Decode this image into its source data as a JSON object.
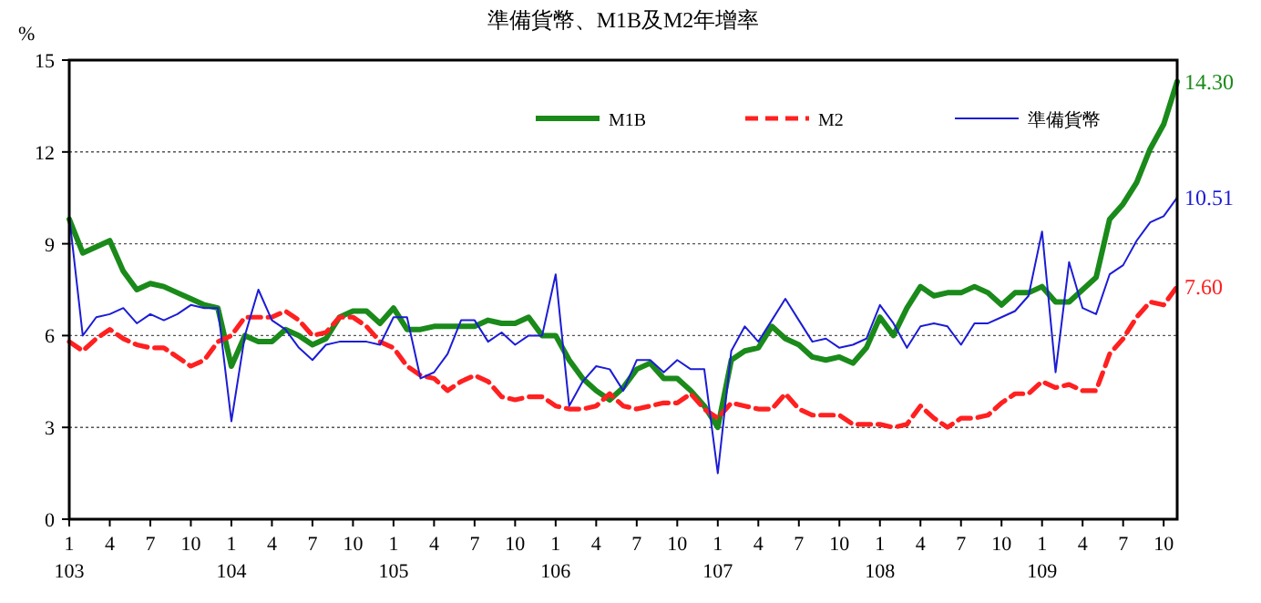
{
  "chart_data": {
    "type": "line",
    "title": "準備貨幣、M1B及M2年增率",
    "ylabel": "%",
    "categories": [
      "1\n103",
      null,
      null,
      "4",
      null,
      null,
      "7",
      null,
      null,
      "10",
      null,
      null,
      "1\n104",
      null,
      null,
      "4",
      null,
      null,
      "7",
      null,
      null,
      "10",
      null,
      null,
      "1\n105",
      null,
      null,
      "4",
      null,
      null,
      "7",
      null,
      null,
      "10",
      null,
      null,
      "1\n106",
      null,
      null,
      "4",
      null,
      null,
      "7",
      null,
      null,
      "10",
      null,
      null,
      "1\n107",
      null,
      null,
      "4",
      null,
      null,
      "7",
      null,
      null,
      "10",
      null,
      null,
      "1\n108",
      null,
      null,
      "4",
      null,
      null,
      "7",
      null,
      null,
      "10",
      null,
      null,
      "1\n109",
      null,
      null,
      "4",
      null,
      null,
      "7",
      null,
      null,
      "10",
      null
    ],
    "series": [
      {
        "name": "M1B",
        "color": "#1a8a1a",
        "line_style": "solid",
        "values": [
          9.8,
          8.7,
          8.9,
          9.1,
          8.1,
          7.5,
          7.7,
          7.6,
          7.4,
          7.2,
          7.0,
          6.9,
          5.0,
          6.0,
          5.8,
          5.8,
          6.2,
          6.0,
          5.7,
          5.9,
          6.6,
          6.8,
          6.8,
          6.4,
          6.9,
          6.2,
          6.2,
          6.3,
          6.3,
          6.3,
          6.3,
          6.5,
          6.4,
          6.4,
          6.6,
          6.0,
          6.0,
          5.2,
          4.6,
          4.2,
          3.9,
          4.3,
          4.9,
          5.1,
          4.6,
          4.6,
          4.2,
          3.7,
          3.0,
          5.2,
          5.5,
          5.6,
          6.3,
          5.9,
          5.7,
          5.3,
          5.2,
          5.3,
          5.1,
          5.6,
          6.6,
          6.0,
          6.9,
          7.6,
          7.3,
          7.4,
          7.4,
          7.6,
          7.4,
          7.0,
          7.4,
          7.4,
          7.6,
          7.1,
          7.1,
          7.5,
          7.9,
          9.8,
          10.3,
          11.0,
          12.1,
          12.9,
          14.3
        ],
        "value_labels": [
          null,
          null,
          null,
          null,
          null,
          null,
          null,
          null,
          null,
          null,
          null,
          null,
          null,
          null,
          null,
          null,
          null,
          null,
          null,
          null,
          null,
          null,
          null,
          null,
          null,
          null,
          null,
          null,
          null,
          null,
          null,
          null,
          null,
          null,
          null,
          null,
          null,
          null,
          null,
          null,
          null,
          null,
          null,
          null,
          null,
          null,
          null,
          null,
          null,
          null,
          null,
          null,
          null,
          null,
          null,
          null,
          null,
          null,
          null,
          null,
          null,
          null,
          null,
          null,
          null,
          null,
          null,
          null,
          null,
          null,
          null,
          null,
          null,
          null,
          null,
          null,
          null,
          null,
          null,
          null,
          null,
          null,
          "14.30"
        ]
      },
      {
        "name": "M2",
        "color": "#ff2020",
        "line_style": "dashed",
        "values": [
          5.8,
          5.5,
          5.9,
          6.2,
          5.9,
          5.7,
          5.6,
          5.6,
          5.3,
          5.0,
          5.2,
          5.8,
          6.0,
          6.6,
          6.6,
          6.6,
          6.8,
          6.5,
          6.0,
          6.1,
          6.6,
          6.6,
          6.3,
          5.8,
          5.6,
          5.0,
          4.7,
          4.6,
          4.2,
          4.5,
          4.7,
          4.5,
          4.0,
          3.9,
          4.0,
          4.0,
          3.7,
          3.6,
          3.6,
          3.7,
          4.1,
          3.7,
          3.6,
          3.7,
          3.8,
          3.8,
          4.1,
          3.6,
          3.3,
          3.8,
          3.7,
          3.6,
          3.6,
          4.1,
          3.6,
          3.4,
          3.4,
          3.4,
          3.1,
          3.1,
          3.1,
          3.0,
          3.1,
          3.7,
          3.3,
          3.0,
          3.3,
          3.3,
          3.4,
          3.8,
          4.1,
          4.1,
          4.5,
          4.3,
          4.4,
          4.2,
          4.2,
          5.4,
          5.9,
          6.6,
          7.1,
          7.0,
          7.6
        ],
        "value_labels": [
          null,
          null,
          null,
          null,
          null,
          null,
          null,
          null,
          null,
          null,
          null,
          null,
          null,
          null,
          null,
          null,
          null,
          null,
          null,
          null,
          null,
          null,
          null,
          null,
          null,
          null,
          null,
          null,
          null,
          null,
          null,
          null,
          null,
          null,
          null,
          null,
          null,
          null,
          null,
          null,
          null,
          null,
          null,
          null,
          null,
          null,
          null,
          null,
          null,
          null,
          null,
          null,
          null,
          null,
          null,
          null,
          null,
          null,
          null,
          null,
          null,
          null,
          null,
          null,
          null,
          null,
          null,
          null,
          null,
          null,
          null,
          null,
          null,
          null,
          null,
          null,
          null,
          null,
          null,
          null,
          null,
          null,
          "7.60"
        ]
      },
      {
        "name": "準備貨幣",
        "color": "#1c1cd6",
        "line_style": "solid",
        "values": [
          9.9,
          6.0,
          6.6,
          6.7,
          6.9,
          6.4,
          6.7,
          6.5,
          6.7,
          7.0,
          6.9,
          6.9,
          3.2,
          6.0,
          7.5,
          6.5,
          6.2,
          5.6,
          5.2,
          5.7,
          5.8,
          5.8,
          5.8,
          5.7,
          6.6,
          6.6,
          4.6,
          4.8,
          5.4,
          6.5,
          6.5,
          5.8,
          6.1,
          5.7,
          6.0,
          6.0,
          8.0,
          3.7,
          4.5,
          5.0,
          4.9,
          4.2,
          5.2,
          5.2,
          4.8,
          5.2,
          4.9,
          4.9,
          1.5,
          5.5,
          6.3,
          5.8,
          6.5,
          7.2,
          6.5,
          5.8,
          5.9,
          5.6,
          5.7,
          5.9,
          7.0,
          6.4,
          5.6,
          6.3,
          6.4,
          6.3,
          5.7,
          6.4,
          6.4,
          6.6,
          6.8,
          7.3,
          9.4,
          4.8,
          8.4,
          6.9,
          6.7,
          8.0,
          8.3,
          9.1,
          9.7,
          9.9,
          10.51
        ],
        "value_labels": [
          null,
          null,
          null,
          null,
          null,
          null,
          null,
          null,
          null,
          null,
          null,
          null,
          null,
          null,
          null,
          null,
          null,
          null,
          null,
          null,
          null,
          null,
          null,
          null,
          null,
          null,
          null,
          null,
          null,
          null,
          null,
          null,
          null,
          null,
          null,
          null,
          null,
          null,
          null,
          null,
          null,
          null,
          null,
          null,
          null,
          null,
          null,
          null,
          null,
          null,
          null,
          null,
          null,
          null,
          null,
          null,
          null,
          null,
          null,
          null,
          null,
          null,
          null,
          null,
          null,
          null,
          null,
          null,
          null,
          null,
          null,
          null,
          null,
          null,
          null,
          null,
          null,
          null,
          null,
          null,
          null,
          null,
          "10.51"
        ]
      }
    ],
    "ylim": [
      0,
      15
    ],
    "yticks": [
      0,
      3,
      6,
      9,
      12,
      15
    ],
    "grid": "y",
    "legend": "top right",
    "marker": "none"
  }
}
